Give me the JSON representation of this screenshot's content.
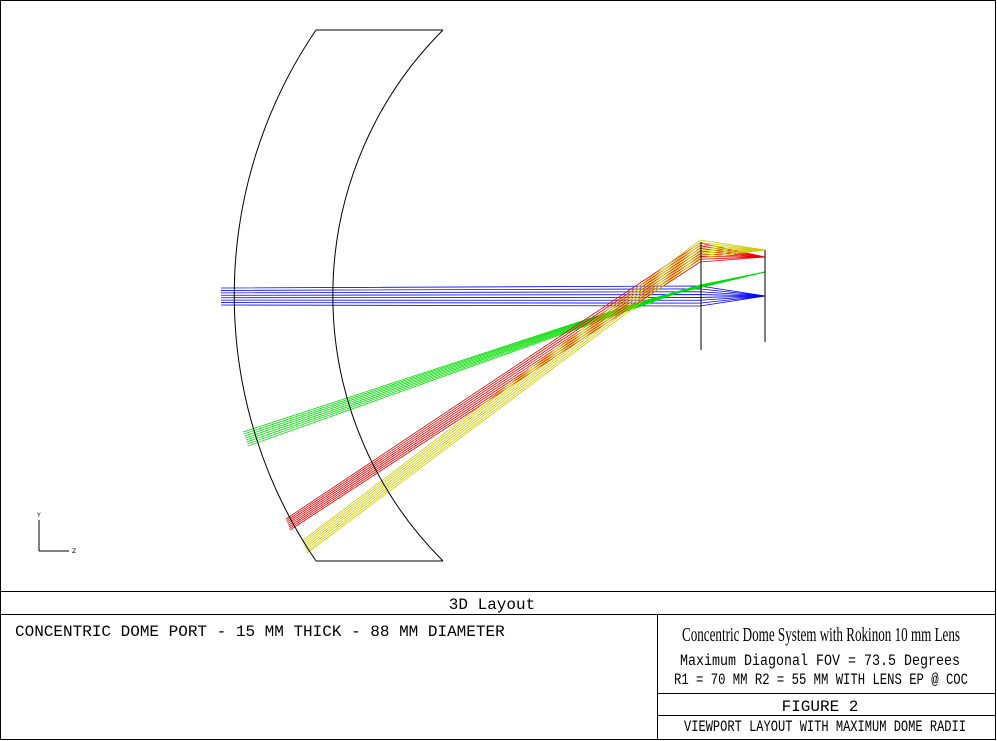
{
  "viewport": {
    "axis_y": "Y",
    "axis_z": "Z"
  },
  "footer": {
    "title": "3D Layout",
    "description": "CONCENTRIC DOME PORT - 15 MM THICK - 88 MM DIAMETER",
    "system_title": "Concentric Dome System with Rokinon 10 mm Lens",
    "fov": "Maximum Diagonal FOV = 73.5 Degrees",
    "radii": "R1 = 70 MM   R2 = 55 MM WITH LENS EP @ COC",
    "figure": "FIGURE 2",
    "caption": "VIEWPORT LAYOUT WITH MAXIMUM DOME RADII"
  }
}
